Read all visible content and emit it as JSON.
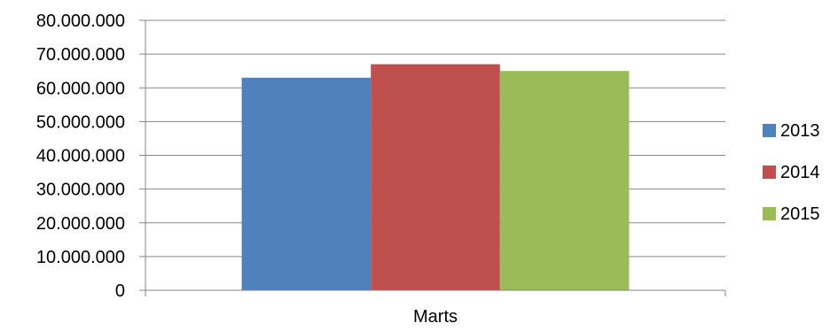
{
  "chart_data": {
    "type": "bar",
    "categories": [
      "Marts"
    ],
    "series": [
      {
        "name": "2013",
        "values": [
          63000000
        ],
        "color": "#4F81BD"
      },
      {
        "name": "2014",
        "values": [
          67000000
        ],
        "color": "#C0504D"
      },
      {
        "name": "2015",
        "values": [
          65000000
        ],
        "color": "#9BBB59"
      }
    ],
    "title": "",
    "xlabel": "",
    "ylabel": "",
    "ylim": [
      0,
      80000000
    ],
    "y_ticks": [
      "0",
      "10.000.000",
      "20.000.000",
      "30.000.000",
      "40.000.000",
      "50.000.000",
      "60.000.000",
      "70.000.000",
      "80.000.000"
    ],
    "grid": true,
    "gridline_color": "#868686",
    "legend_position": "right"
  }
}
